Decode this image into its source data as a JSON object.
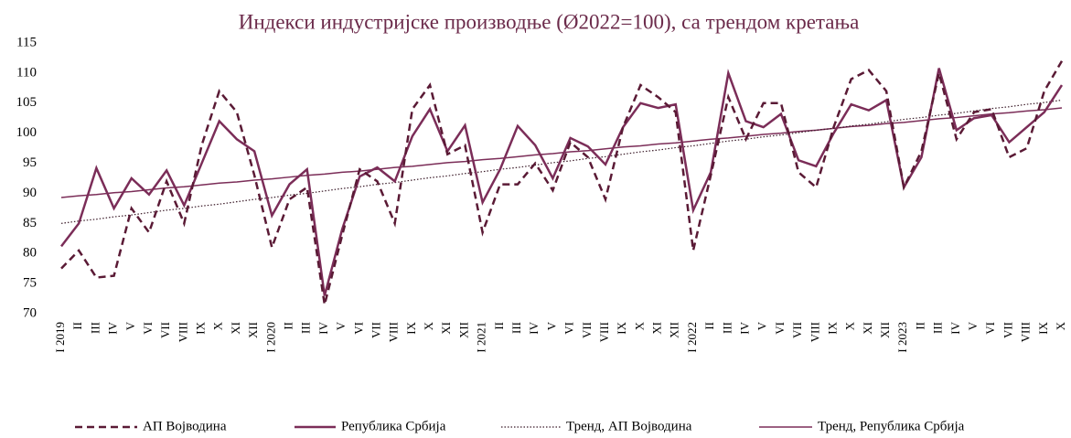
{
  "chart_data": {
    "type": "line",
    "title": "Индекси индустријске производње (Ø2022=100), са трендом кретања",
    "categories": [
      "I 2019",
      "II",
      "III",
      "IV",
      "V",
      "VI",
      "VII",
      "VIII",
      "IX",
      "X",
      "XI",
      "XII",
      "I 2020",
      "II",
      "III",
      "IV",
      "V",
      "VI",
      "VII",
      "VIII",
      "IX",
      "X",
      "XI",
      "XII",
      "I 2021",
      "II",
      "III",
      "IV",
      "V",
      "VI",
      "VII",
      "VIII",
      "IX",
      "X",
      "XI",
      "XII",
      "I 2022",
      "II",
      "III",
      "IV",
      "V",
      "VI",
      "VII",
      "VIII",
      "IX",
      "X",
      "XI",
      "XII",
      "I 2023",
      "II",
      "III",
      "IV",
      "V",
      "VI",
      "VII",
      "VIII",
      "IX",
      "X"
    ],
    "series": [
      {
        "name": "АП Војводина",
        "color": "#5a1a35",
        "style": "dashed",
        "width": 2.5,
        "values": [
          77.5,
          80.5,
          76,
          76.3,
          87.5,
          83.5,
          92,
          85,
          98,
          107,
          103.5,
          93,
          81,
          89,
          91,
          71.5,
          83,
          94,
          92,
          85,
          104,
          108,
          96.5,
          98,
          83.5,
          91.5,
          91.5,
          95,
          90.5,
          98.5,
          96,
          89,
          101,
          108,
          106,
          103.5,
          80.5,
          93,
          106,
          99,
          105,
          105,
          93.5,
          91,
          101,
          109,
          110.5,
          107,
          91,
          97,
          110,
          99,
          103.5,
          104,
          96,
          97.5,
          107,
          112
        ]
      },
      {
        "name": "Република Србија",
        "color": "#7b2d58",
        "style": "solid",
        "width": 2.5,
        "values": [
          81.2,
          85,
          94.2,
          87.5,
          92.5,
          89.8,
          93.8,
          88,
          95,
          102,
          99,
          97,
          86.3,
          91.5,
          94,
          73,
          84,
          92.8,
          94.3,
          92,
          99.5,
          104,
          97,
          101.3,
          88.5,
          94,
          101.2,
          98,
          92.5,
          99.2,
          97.8,
          94.8,
          101,
          105,
          104.2,
          104.8,
          87.2,
          93.5,
          110,
          102,
          101,
          103.2,
          95.5,
          94.5,
          100,
          104.8,
          103.8,
          105.5,
          91,
          96,
          110.8,
          100.5,
          102.5,
          103,
          98.5,
          101,
          103.5,
          108
        ]
      },
      {
        "name": "Тренд, АП Војводина",
        "color": "#3a1a28",
        "style": "dotted",
        "width": 1.2,
        "values": [
          85.0,
          85.4,
          85.7,
          86.1,
          86.4,
          86.8,
          87.2,
          87.5,
          87.9,
          88.2,
          88.6,
          89.0,
          89.3,
          89.7,
          90.0,
          90.4,
          90.8,
          91.1,
          91.5,
          91.8,
          92.2,
          92.6,
          92.9,
          93.3,
          93.6,
          94.0,
          94.3,
          94.7,
          95.1,
          95.4,
          95.8,
          96.1,
          96.5,
          96.9,
          97.2,
          97.6,
          97.9,
          98.3,
          98.7,
          99.0,
          99.4,
          99.7,
          100.1,
          100.5,
          100.8,
          101.2,
          101.5,
          101.9,
          102.3,
          102.6,
          103.0,
          103.3,
          103.7,
          104.1,
          104.4,
          104.8,
          105.1,
          105.5
        ]
      },
      {
        "name": "Тренд, Република Србија",
        "color": "#7b2d58",
        "style": "solid",
        "width": 1.5,
        "values": [
          89.3,
          89.6,
          89.8,
          90.1,
          90.3,
          90.6,
          90.9,
          91.1,
          91.4,
          91.7,
          91.9,
          92.2,
          92.4,
          92.7,
          93.0,
          93.2,
          93.5,
          93.7,
          94.0,
          94.3,
          94.5,
          94.8,
          95.1,
          95.3,
          95.6,
          95.8,
          96.1,
          96.4,
          96.6,
          96.9,
          97.1,
          97.4,
          97.7,
          97.9,
          98.2,
          98.4,
          98.7,
          99.0,
          99.2,
          99.5,
          99.8,
          100.0,
          100.3,
          100.5,
          100.8,
          101.1,
          101.3,
          101.6,
          101.8,
          102.1,
          102.4,
          102.6,
          102.9,
          103.2,
          103.4,
          103.7,
          103.9,
          104.2
        ]
      }
    ],
    "ylim": [
      70,
      115
    ],
    "yticks": [
      70,
      75,
      80,
      85,
      90,
      95,
      100,
      105,
      110,
      115
    ],
    "grid": false
  }
}
